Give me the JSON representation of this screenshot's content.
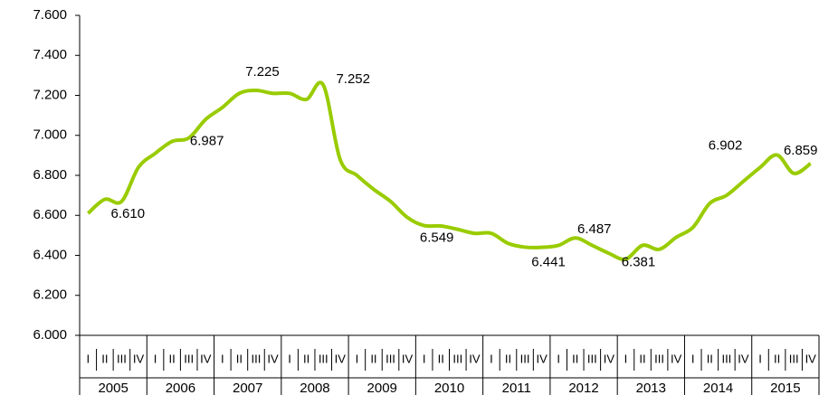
{
  "chart_data": {
    "type": "line",
    "categories": [
      "I",
      "II",
      "III",
      "IV",
      "I",
      "II",
      "III",
      "IV",
      "I",
      "II",
      "III",
      "IV",
      "I",
      "II",
      "III",
      "IV",
      "I",
      "II",
      "III",
      "IV",
      "I",
      "II",
      "III",
      "IV",
      "I",
      "II",
      "III",
      "IV",
      "I",
      "II",
      "III",
      "IV",
      "I",
      "II",
      "III",
      "IV",
      "I",
      "II",
      "III",
      "IV",
      "I",
      "II",
      "III",
      "IV"
    ],
    "years": [
      "2005",
      "2006",
      "2007",
      "2008",
      "2009",
      "2010",
      "2011",
      "2012",
      "2013",
      "2014",
      "2015"
    ],
    "series": [
      {
        "color": "#99cc00",
        "values": [
          6.61,
          6.68,
          6.67,
          6.84,
          6.91,
          6.97,
          6.987,
          7.08,
          7.14,
          7.21,
          7.225,
          7.21,
          7.21,
          7.18,
          7.252,
          6.88,
          6.8,
          6.73,
          6.67,
          6.59,
          6.549,
          6.547,
          6.53,
          6.51,
          6.51,
          6.46,
          6.441,
          6.44,
          6.45,
          6.487,
          6.45,
          6.41,
          6.381,
          6.45,
          6.43,
          6.49,
          6.54,
          6.66,
          6.7,
          6.77,
          6.84,
          6.902,
          6.81,
          6.859
        ],
        "value_labels": [
          "6.610",
          null,
          null,
          null,
          null,
          null,
          "6.987",
          null,
          null,
          null,
          "7.225",
          null,
          null,
          null,
          "7.252",
          null,
          null,
          null,
          null,
          null,
          "6.549",
          null,
          null,
          null,
          null,
          null,
          "6.441",
          null,
          null,
          "6.487",
          null,
          null,
          "6.381",
          null,
          null,
          null,
          null,
          null,
          null,
          null,
          null,
          "6.902",
          null,
          "6.859"
        ]
      }
    ],
    "ylim": [
      6.0,
      7.6
    ],
    "yticks": [
      {
        "value": 6.0,
        "label": "6.000"
      },
      {
        "value": 6.2,
        "label": "6.200"
      },
      {
        "value": 6.4,
        "label": "6.400"
      },
      {
        "value": 6.6,
        "label": "6.600"
      },
      {
        "value": 6.8,
        "label": "6.800"
      },
      {
        "value": 7.0,
        "label": "7.000"
      },
      {
        "value": 7.2,
        "label": "7.200"
      },
      {
        "value": 7.4,
        "label": "7.400"
      },
      {
        "value": 7.6,
        "label": "7.600"
      }
    ],
    "grid": false
  }
}
